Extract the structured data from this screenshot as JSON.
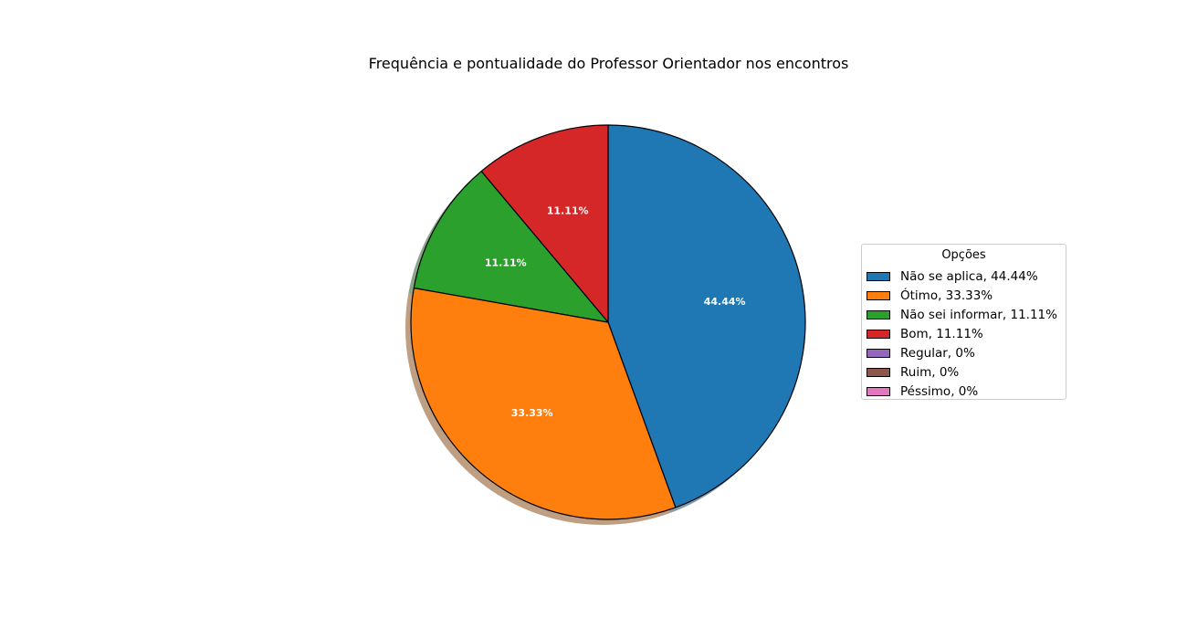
{
  "chart_data": {
    "type": "pie",
    "title": "Frequência e pontualidade do Professor Orientador nos encontros",
    "start_angle": 90,
    "direction": "clockwise",
    "shadow": true,
    "slices": [
      {
        "label": "Não se aplica",
        "value": 44.44,
        "pct_label": "44.44%",
        "legend": "Não se aplica, 44.44%",
        "color": "#1f77b4"
      },
      {
        "label": "Ótimo",
        "value": 33.33,
        "pct_label": "33.33%",
        "legend": "Ótimo, 33.33%",
        "color": "#ff7f0e"
      },
      {
        "label": "Não sei informar",
        "value": 11.11,
        "pct_label": "11.11%",
        "legend": "Não sei informar, 11.11%",
        "color": "#2ca02c"
      },
      {
        "label": "Bom",
        "value": 11.11,
        "pct_label": "11.11%",
        "legend": "Bom, 11.11%",
        "color": "#d62728"
      },
      {
        "label": "Regular",
        "value": 0,
        "pct_label": "",
        "legend": "Regular, 0%",
        "color": "#9467bd"
      },
      {
        "label": "Ruim",
        "value": 0,
        "pct_label": "",
        "legend": "Ruim, 0%",
        "color": "#8c564b"
      },
      {
        "label": "Péssimo",
        "value": 0,
        "pct_label": "",
        "legend": "Péssimo, 0%",
        "color": "#e377c2"
      }
    ],
    "legend": {
      "title": "Opções",
      "placement": "right"
    }
  }
}
